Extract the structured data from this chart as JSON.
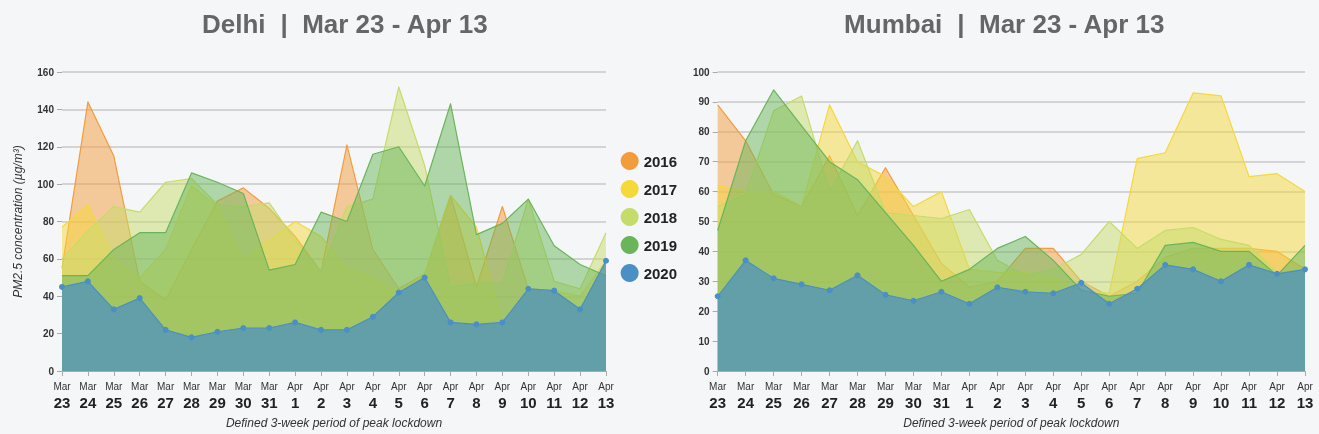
{
  "chart_data": [
    {
      "type": "area",
      "title": "Delhi | Mar 23 - Apr 13",
      "xlabel": "Defined 3-week period of peak lockdown",
      "ylabel": "PM2.5 concentration (µg/m³)",
      "categories": [
        "Mar 23",
        "Mar 24",
        "Mar 25",
        "Mar 26",
        "Mar 27",
        "Mar 28",
        "Mar 29",
        "Mar 30",
        "Mar 31",
        "Apr 1",
        "Apr 2",
        "Apr 3",
        "Apr 4",
        "Apr 5",
        "Apr 6",
        "Apr 7",
        "Apr 8",
        "Apr 9",
        "Apr 10",
        "Apr 11",
        "Apr 12",
        "Apr 13"
      ],
      "series": [
        {
          "name": "2016",
          "color": "#f39c3c",
          "marker": "none",
          "values": [
            55,
            144,
            115,
            48,
            38,
            65,
            91,
            98,
            87,
            72,
            53,
            121,
            65,
            44,
            52,
            94,
            45,
            88,
            44,
            43,
            33,
            59
          ]
        },
        {
          "name": "2017",
          "color": "#f5d83a",
          "marker": "none",
          "values": [
            77,
            89,
            60,
            50,
            65,
            99,
            88,
            60,
            70,
            80,
            72,
            55,
            50,
            42,
            52,
            94,
            77,
            26,
            44,
            43,
            40,
            59
          ]
        },
        {
          "name": "2018",
          "color": "#c5dc6a",
          "marker": "none",
          "values": [
            60,
            75,
            88,
            85,
            101,
            103,
            89,
            88,
            90,
            70,
            53,
            88,
            92,
            152,
            110,
            45,
            47,
            47,
            92,
            48,
            44,
            74
          ]
        },
        {
          "name": "2019",
          "color": "#6ab55a",
          "marker": "none",
          "values": [
            51,
            51,
            65,
            74,
            74,
            106,
            101,
            95,
            54,
            57,
            85,
            80,
            116,
            120,
            99,
            143,
            73,
            79,
            92,
            67,
            57,
            51
          ]
        },
        {
          "name": "2020",
          "color": "#4a90c4",
          "marker": "circle",
          "values": [
            45,
            48,
            33,
            39,
            22,
            18,
            21,
            23,
            23,
            26,
            22,
            22,
            29,
            42,
            50,
            26,
            25,
            26,
            44,
            43,
            33,
            59
          ]
        }
      ],
      "ylim": [
        0,
        160
      ],
      "yticks": [
        0,
        20,
        40,
        60,
        80,
        100,
        120,
        140,
        160
      ],
      "grid": "y",
      "legend": "right"
    },
    {
      "type": "area",
      "title": "Mumbai | Mar 23 - Apr 13",
      "xlabel": "Defined 3-week period of peak lockdown",
      "categories": [
        "Mar 23",
        "Mar 24",
        "Mar 25",
        "Mar 26",
        "Mar 27",
        "Mar 28",
        "Mar 29",
        "Mar 30",
        "Mar 31",
        "Apr 1",
        "Apr 2",
        "Apr 3",
        "Apr 4",
        "Apr 5",
        "Apr 6",
        "Apr 7",
        "Apr 8",
        "Apr 9",
        "Apr 10",
        "Apr 11",
        "Apr 12",
        "Apr 13"
      ],
      "series": [
        {
          "color": "#f39c3c",
          "marker": "none",
          "values": [
            89,
            77,
            59,
            55,
            72,
            52,
            68,
            52,
            36,
            28,
            30,
            41,
            41,
            30,
            25,
            30,
            38,
            41,
            41,
            41,
            40,
            34
          ]
        },
        {
          "color": "#f5d83a",
          "marker": "none",
          "values": [
            62,
            60,
            60,
            55,
            89,
            70,
            65,
            55,
            60,
            34,
            33,
            33,
            31,
            27,
            26,
            71,
            73,
            93,
            92,
            65,
            66,
            60
          ]
        },
        {
          "color": "#c5dc6a",
          "marker": "none",
          "values": [
            55,
            59,
            87,
            92,
            60,
            77,
            53,
            52,
            51,
            54,
            37,
            32,
            34,
            39,
            50,
            41,
            47,
            48,
            44,
            42,
            33,
            34
          ]
        },
        {
          "color": "#6ab55a",
          "marker": "none",
          "values": [
            47,
            77,
            94,
            82,
            70,
            64,
            53,
            42,
            30,
            34,
            41,
            45,
            37,
            27,
            25,
            26,
            42,
            43,
            40,
            40,
            32,
            42
          ]
        },
        {
          "color": "#4a90c4",
          "marker": "circle",
          "values": [
            25,
            37,
            31,
            29,
            27,
            32,
            25.5,
            23.5,
            26.5,
            22.5,
            28,
            26.5,
            26,
            29.5,
            22.5,
            27.5,
            35.5,
            34,
            30,
            35.5,
            32.5,
            34
          ]
        }
      ],
      "ylim": [
        0,
        100
      ],
      "yticks": [
        0,
        10,
        20,
        30,
        40,
        50,
        60,
        70,
        80,
        90,
        100
      ],
      "grid": "y",
      "legend": false
    }
  ]
}
